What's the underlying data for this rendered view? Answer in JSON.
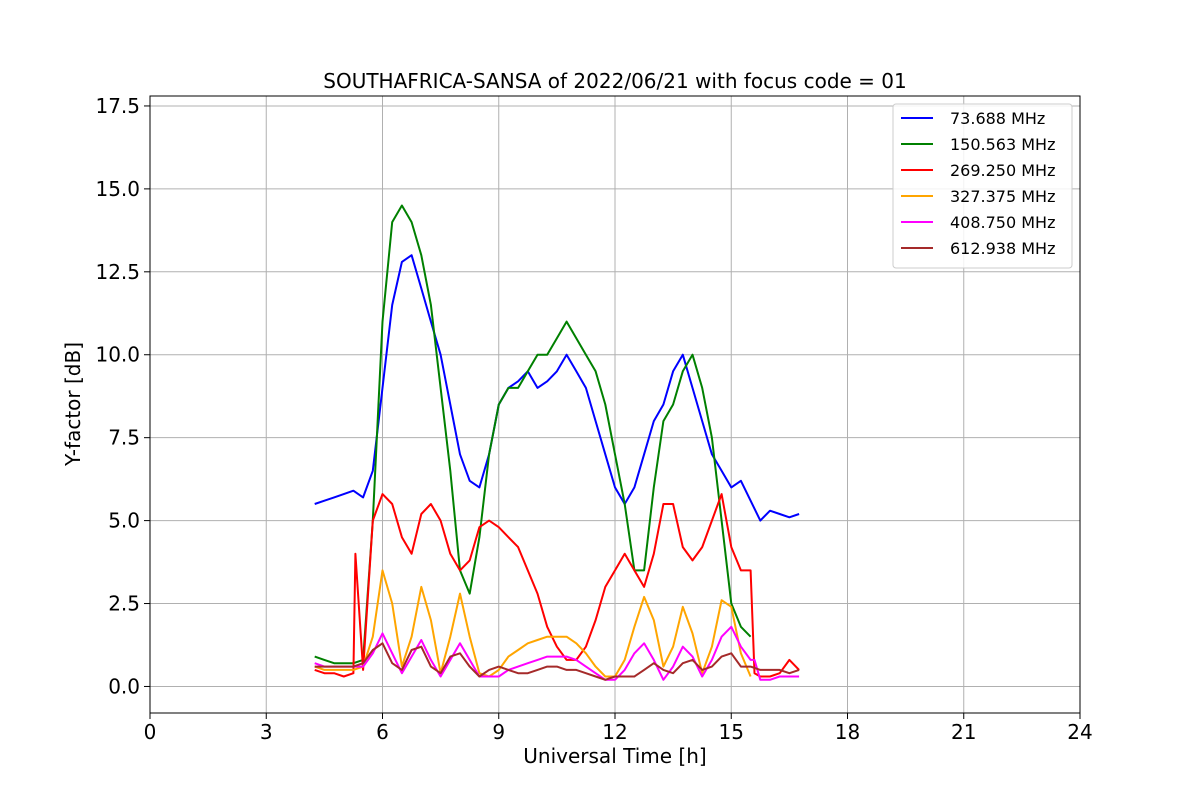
{
  "chart_data": {
    "type": "line",
    "title": "SOUTHAFRICA-SANSA of 2022/06/21 with focus code = 01",
    "xlabel": "Universal Time [h]",
    "ylabel": "Y-factor [dB]",
    "xlim": [
      0,
      24
    ],
    "ylim": [
      -0.8,
      17.8
    ],
    "x_ticks": [
      0,
      3,
      6,
      9,
      12,
      15,
      18,
      21,
      24
    ],
    "x_tick_labels": [
      "0",
      "3",
      "6",
      "9",
      "12",
      "15",
      "18",
      "21",
      "24"
    ],
    "y_ticks": [
      0,
      2.5,
      5,
      7.5,
      10,
      12.5,
      15,
      17.5
    ],
    "y_tick_labels": [
      "0.0",
      "2.5",
      "5.0",
      "7.5",
      "10.0",
      "12.5",
      "15.0",
      "17.5"
    ],
    "grid": true,
    "legend_position": "top-right",
    "series": [
      {
        "name": " 73.688 MHz",
        "color": "#0000ff",
        "x": [
          4.25,
          4.5,
          4.75,
          5.0,
          5.25,
          5.5,
          5.75,
          6.0,
          6.25,
          6.5,
          6.75,
          7.0,
          7.25,
          7.5,
          7.75,
          8.0,
          8.25,
          8.5,
          8.75,
          9.0,
          9.25,
          9.5,
          9.75,
          10.0,
          10.25,
          10.5,
          10.75,
          11.0,
          11.25,
          11.5,
          11.75,
          12.0,
          12.25,
          12.5,
          12.75,
          13.0,
          13.25,
          13.5,
          13.75,
          14.0,
          14.25,
          14.5,
          14.75,
          15.0,
          15.25,
          15.5,
          15.75,
          16.0,
          16.25,
          16.5,
          16.75
        ],
        "y": [
          5.5,
          5.6,
          5.7,
          5.8,
          5.9,
          5.7,
          6.5,
          9.0,
          11.5,
          12.8,
          13.0,
          12.0,
          11.0,
          10.0,
          8.5,
          7.0,
          6.2,
          6.0,
          7.0,
          8.5,
          9.0,
          9.2,
          9.5,
          9.0,
          9.2,
          9.5,
          10.0,
          9.5,
          9.0,
          8.0,
          7.0,
          6.0,
          5.5,
          6.0,
          7.0,
          8.0,
          8.5,
          9.5,
          10.0,
          9.0,
          8.0,
          7.0,
          6.5,
          6.0,
          6.2,
          5.6,
          5.0,
          5.3,
          5.2,
          5.1,
          5.2
        ]
      },
      {
        "name": "150.563 MHz",
        "color": "#008000",
        "x": [
          4.25,
          4.5,
          4.75,
          5.0,
          5.25,
          5.5,
          5.75,
          6.0,
          6.25,
          6.5,
          6.75,
          7.0,
          7.25,
          7.5,
          7.75,
          8.0,
          8.25,
          8.5,
          8.75,
          9.0,
          9.25,
          9.5,
          9.75,
          10.0,
          10.25,
          10.5,
          10.75,
          11.0,
          11.25,
          11.5,
          11.75,
          12.0,
          12.25,
          12.5,
          12.75,
          13.0,
          13.25,
          13.5,
          13.75,
          14.0,
          14.25,
          14.5,
          14.75,
          15.0,
          15.25,
          15.5
        ],
        "y": [
          0.9,
          0.8,
          0.7,
          0.7,
          0.7,
          0.8,
          5.0,
          11.0,
          14.0,
          14.5,
          14.0,
          13.0,
          11.5,
          9.0,
          6.5,
          3.5,
          2.8,
          4.5,
          7.0,
          8.5,
          9.0,
          9.0,
          9.5,
          10.0,
          10.0,
          10.5,
          11.0,
          10.5,
          10.0,
          9.5,
          8.5,
          7.0,
          5.5,
          3.5,
          3.5,
          6.0,
          8.0,
          8.5,
          9.5,
          10.0,
          9.0,
          7.5,
          5.0,
          2.5,
          1.8,
          1.5
        ]
      },
      {
        "name": "269.250 MHz",
        "color": "#ff0000",
        "x": [
          4.25,
          4.5,
          4.75,
          5.0,
          5.25,
          5.3,
          5.5,
          5.75,
          6.0,
          6.25,
          6.5,
          6.75,
          7.0,
          7.25,
          7.5,
          7.75,
          8.0,
          8.25,
          8.5,
          8.75,
          9.0,
          9.25,
          9.5,
          9.75,
          10.0,
          10.25,
          10.5,
          10.75,
          11.0,
          11.25,
          11.5,
          11.75,
          12.0,
          12.25,
          12.5,
          12.75,
          13.0,
          13.25,
          13.5,
          13.75,
          14.0,
          14.25,
          14.5,
          14.75,
          15.0,
          15.25,
          15.5,
          15.6,
          15.75,
          16.0,
          16.25,
          16.5,
          16.75
        ],
        "y": [
          0.5,
          0.4,
          0.4,
          0.3,
          0.4,
          4.0,
          0.5,
          5.0,
          5.8,
          5.5,
          4.5,
          4.0,
          5.2,
          5.5,
          5.0,
          4.0,
          3.5,
          3.8,
          4.8,
          5.0,
          4.8,
          4.5,
          4.2,
          3.5,
          2.8,
          1.8,
          1.2,
          0.8,
          0.8,
          1.2,
          2.0,
          3.0,
          3.5,
          4.0,
          3.5,
          3.0,
          4.0,
          5.5,
          5.5,
          4.2,
          3.8,
          4.2,
          5.0,
          5.8,
          4.2,
          3.5,
          3.5,
          0.4,
          0.3,
          0.3,
          0.4,
          0.8,
          0.5
        ]
      },
      {
        "name": "327.375 MHz",
        "color": "#ffa500",
        "x": [
          4.25,
          4.5,
          4.75,
          5.0,
          5.25,
          5.5,
          5.75,
          6.0,
          6.25,
          6.5,
          6.75,
          7.0,
          7.25,
          7.5,
          7.75,
          8.0,
          8.25,
          8.5,
          8.75,
          9.0,
          9.25,
          9.5,
          9.75,
          10.0,
          10.25,
          10.5,
          10.75,
          11.0,
          11.25,
          11.5,
          11.75,
          12.0,
          12.25,
          12.5,
          12.75,
          13.0,
          13.25,
          13.5,
          13.75,
          14.0,
          14.25,
          14.5,
          14.75,
          15.0,
          15.25,
          15.5
        ],
        "y": [
          0.6,
          0.5,
          0.5,
          0.5,
          0.5,
          0.6,
          1.5,
          3.5,
          2.5,
          0.6,
          1.5,
          3.0,
          2.0,
          0.4,
          1.5,
          2.8,
          1.5,
          0.4,
          0.3,
          0.5,
          0.9,
          1.1,
          1.3,
          1.4,
          1.5,
          1.5,
          1.5,
          1.3,
          1.0,
          0.6,
          0.3,
          0.3,
          0.8,
          1.8,
          2.7,
          2.0,
          0.6,
          1.2,
          2.4,
          1.6,
          0.4,
          1.2,
          2.6,
          2.4,
          1.0,
          0.3
        ]
      },
      {
        "name": "408.750 MHz",
        "color": "#ff00ff",
        "x": [
          4.25,
          4.5,
          4.75,
          5.0,
          5.25,
          5.5,
          5.75,
          6.0,
          6.25,
          6.5,
          6.75,
          7.0,
          7.25,
          7.5,
          7.75,
          8.0,
          8.25,
          8.5,
          8.75,
          9.0,
          9.25,
          9.5,
          9.75,
          10.0,
          10.25,
          10.5,
          10.75,
          11.0,
          11.25,
          11.5,
          11.75,
          12.0,
          12.25,
          12.5,
          12.75,
          13.0,
          13.25,
          13.5,
          13.75,
          14.0,
          14.25,
          14.5,
          14.75,
          15.0,
          15.25,
          15.5,
          15.6,
          15.75,
          16.0,
          16.25,
          16.5,
          16.75
        ],
        "y": [
          0.7,
          0.6,
          0.6,
          0.6,
          0.6,
          0.6,
          1.0,
          1.6,
          1.0,
          0.4,
          0.9,
          1.4,
          0.8,
          0.3,
          0.8,
          1.3,
          0.8,
          0.3,
          0.3,
          0.3,
          0.5,
          0.6,
          0.7,
          0.8,
          0.9,
          0.9,
          0.9,
          0.8,
          0.6,
          0.4,
          0.2,
          0.2,
          0.5,
          1.0,
          1.3,
          0.8,
          0.2,
          0.6,
          1.2,
          0.9,
          0.3,
          0.8,
          1.5,
          1.8,
          1.2,
          0.8,
          0.8,
          0.2,
          0.2,
          0.3,
          0.3,
          0.3
        ]
      },
      {
        "name": "612.938 MHz",
        "color": "#a52a2a",
        "x": [
          4.25,
          4.5,
          4.75,
          5.0,
          5.25,
          5.5,
          5.75,
          6.0,
          6.25,
          6.5,
          6.75,
          7.0,
          7.25,
          7.5,
          7.75,
          8.0,
          8.25,
          8.5,
          8.75,
          9.0,
          9.25,
          9.5,
          9.75,
          10.0,
          10.25,
          10.5,
          10.75,
          11.0,
          11.25,
          11.5,
          11.75,
          12.0,
          12.25,
          12.5,
          12.75,
          13.0,
          13.25,
          13.5,
          13.75,
          14.0,
          14.25,
          14.5,
          14.75,
          15.0,
          15.25,
          15.5,
          15.75,
          16.0,
          16.25,
          16.5,
          16.75
        ],
        "y": [
          0.6,
          0.6,
          0.6,
          0.6,
          0.6,
          0.7,
          1.1,
          1.3,
          0.7,
          0.5,
          1.1,
          1.2,
          0.6,
          0.4,
          0.9,
          1.0,
          0.6,
          0.3,
          0.5,
          0.6,
          0.5,
          0.4,
          0.4,
          0.5,
          0.6,
          0.6,
          0.5,
          0.5,
          0.4,
          0.3,
          0.2,
          0.3,
          0.3,
          0.3,
          0.5,
          0.7,
          0.5,
          0.4,
          0.7,
          0.8,
          0.5,
          0.6,
          0.9,
          1.0,
          0.6,
          0.6,
          0.5,
          0.5,
          0.5,
          0.4,
          0.5
        ]
      }
    ]
  }
}
